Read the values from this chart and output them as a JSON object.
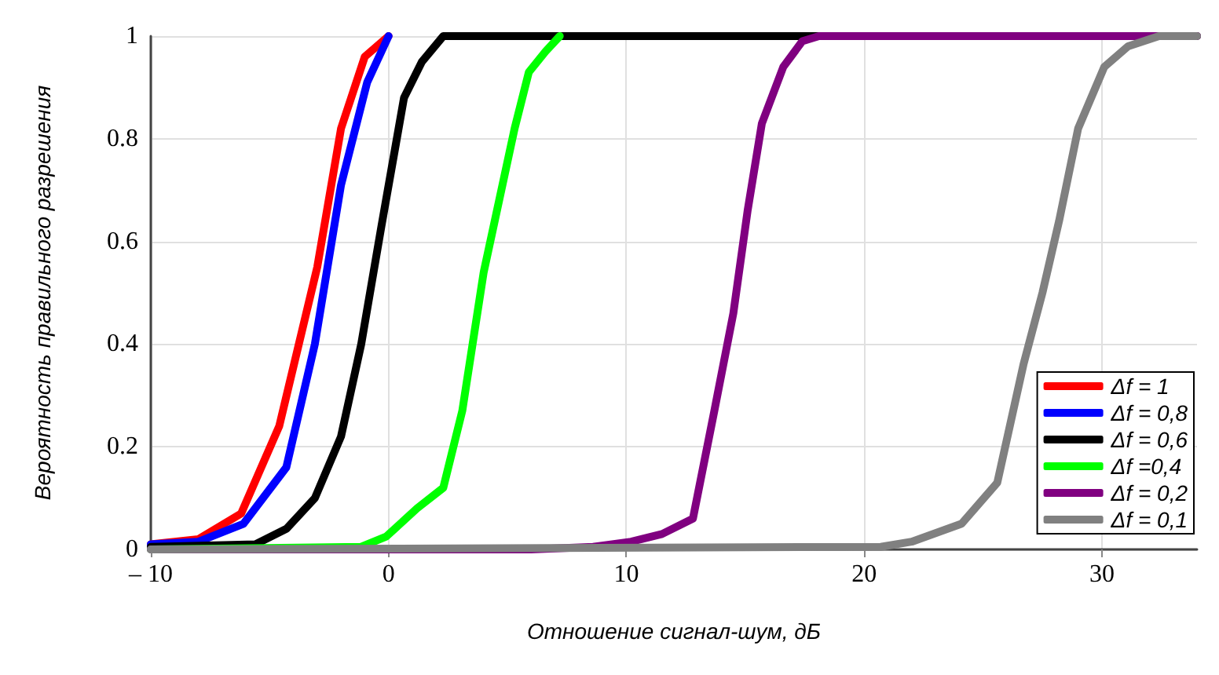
{
  "chart_data": {
    "type": "line",
    "xlabel": "Отношение сигнал-шум, дБ",
    "ylabel": "Вероятность правильного разрешения",
    "xlim": [
      -10,
      34
    ],
    "xticks": [
      {
        "value": -10,
        "label": "– 10"
      },
      0,
      10,
      20,
      30
    ],
    "ylim": [
      0,
      1
    ],
    "yticks": [
      0,
      0.2,
      0.4,
      0.6,
      0.8,
      1
    ],
    "grid": true,
    "legend": "bottom right",
    "marker": "none",
    "line_style": "solid",
    "series": [
      {
        "name": "Δf = 1",
        "color": "#ff0000",
        "x": [
          -10,
          -8,
          -6.2,
          -4.6,
          -3,
          -2,
          -1,
          0
        ],
        "values": [
          0.01,
          0.02,
          0.07,
          0.24,
          0.55,
          0.82,
          0.96,
          1
        ]
      },
      {
        "name": "Δf = 0,8",
        "color": "#0000ff",
        "x": [
          -10,
          -8,
          -6.1,
          -4.3,
          -3.1,
          -2,
          -0.9,
          0
        ],
        "values": [
          0.01,
          0.015,
          0.05,
          0.16,
          0.4,
          0.71,
          0.91,
          1
        ]
      },
      {
        "name": "Δf = 0,6",
        "color": "#000000",
        "x": [
          -10,
          -5.6,
          -4.3,
          -3.1,
          -2,
          -1.15,
          -0.3,
          0.65,
          1.4,
          2.3,
          34
        ],
        "values": [
          0.005,
          0.01,
          0.04,
          0.1,
          0.22,
          0.4,
          0.63,
          0.88,
          0.95,
          1,
          1
        ]
      },
      {
        "name": "Δf =0,4",
        "color": "#00ff00",
        "x": [
          -10,
          -1.15,
          -0.1,
          1.2,
          2.3,
          3.1,
          4,
          5.3,
          5.9,
          6.6,
          7.2
        ],
        "values": [
          0,
          0.005,
          0.025,
          0.08,
          0.12,
          0.27,
          0.54,
          0.82,
          0.93,
          0.97,
          1
        ]
      },
      {
        "name": "Δf = 0,2",
        "color": "#800080",
        "x": [
          -10,
          6,
          8.6,
          10.2,
          11.5,
          12.8,
          13.7,
          14.5,
          15.1,
          15.7,
          16.6,
          17.4,
          18.1,
          34
        ],
        "values": [
          0,
          0,
          0.005,
          0.015,
          0.03,
          0.06,
          0.27,
          0.46,
          0.66,
          0.83,
          0.94,
          0.99,
          1,
          1
        ]
      },
      {
        "name": "Δf = 0,1",
        "color": "#808080",
        "x": [
          -10,
          20.7,
          22,
          24.1,
          25.6,
          26.7,
          27.5,
          28.2,
          29,
          30.1,
          31.1,
          32.4,
          34
        ],
        "values": [
          0,
          0.005,
          0.015,
          0.05,
          0.13,
          0.36,
          0.5,
          0.64,
          0.82,
          0.94,
          0.98,
          1,
          1
        ]
      }
    ]
  }
}
